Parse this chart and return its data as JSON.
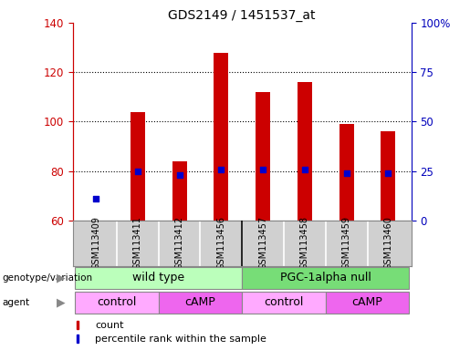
{
  "title": "GDS2149 / 1451537_at",
  "samples": [
    "GSM113409",
    "GSM113411",
    "GSM113412",
    "GSM113456",
    "GSM113457",
    "GSM113458",
    "GSM113459",
    "GSM113460"
  ],
  "count_values": [
    60,
    104,
    84,
    128,
    112,
    116,
    99,
    96
  ],
  "percentile_values": [
    11,
    25,
    23,
    26,
    26,
    26,
    24,
    24
  ],
  "ylim_left": [
    60,
    140
  ],
  "ylim_right": [
    0,
    100
  ],
  "yticks_left": [
    60,
    80,
    100,
    120,
    140
  ],
  "yticks_right": [
    0,
    25,
    50,
    75,
    100
  ],
  "bar_color": "#CC0000",
  "percentile_color": "#0000CC",
  "bar_width": 0.35,
  "genotype_groups": [
    {
      "label": "wild type",
      "start": 0,
      "end": 3,
      "color": "#BBFFBB"
    },
    {
      "label": "PGC-1alpha null",
      "start": 4,
      "end": 7,
      "color": "#77DD77"
    }
  ],
  "agent_groups": [
    {
      "label": "control",
      "start": 0,
      "end": 1,
      "color": "#FFAAFF"
    },
    {
      "label": "cAMP",
      "start": 2,
      "end": 3,
      "color": "#EE66EE"
    },
    {
      "label": "control",
      "start": 4,
      "end": 5,
      "color": "#FFAAFF"
    },
    {
      "label": "cAMP",
      "start": 6,
      "end": 7,
      "color": "#EE66EE"
    }
  ],
  "legend_count_color": "#CC0000",
  "legend_percentile_color": "#0000CC",
  "ylabel_left_color": "#CC0000",
  "ylabel_right_color": "#0000BB",
  "grid_dotted_color": "black",
  "background_color": "#FFFFFF",
  "plot_bg_color": "#FFFFFF",
  "sample_bg_color": "#D0D0D0",
  "border_color": "#888888"
}
